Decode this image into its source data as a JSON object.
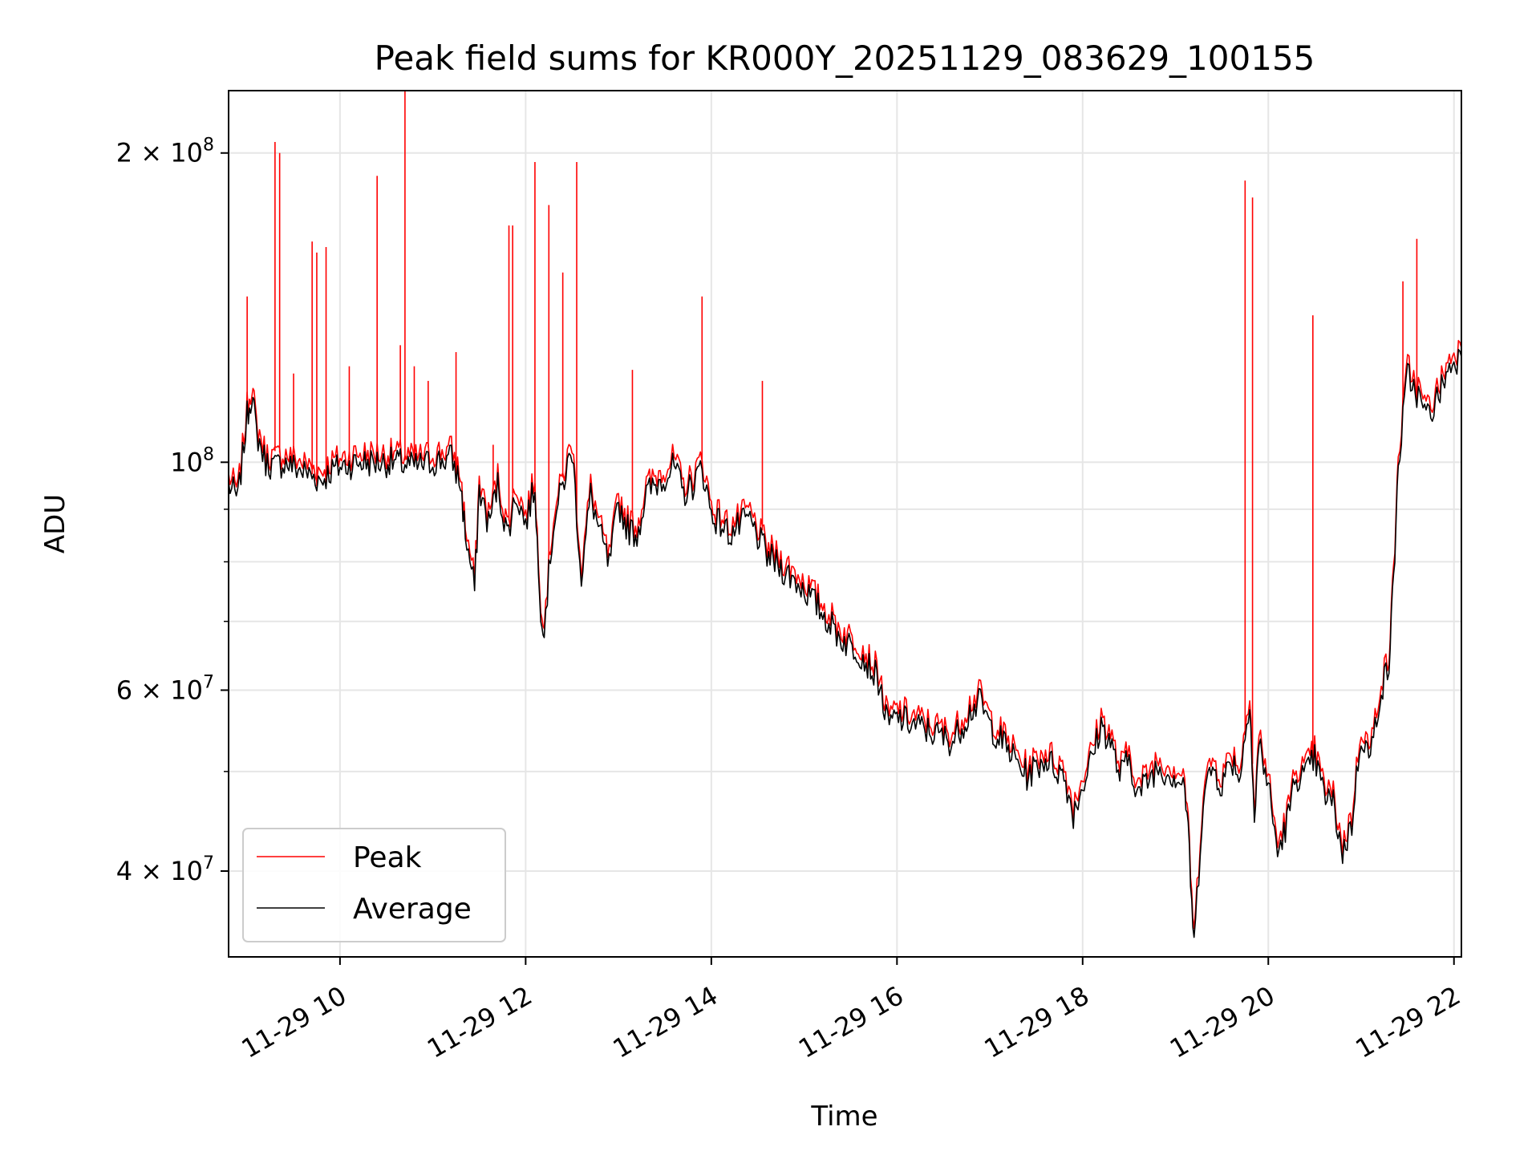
{
  "chart_data": {
    "type": "line",
    "title": "Peak field sums for KR000Y_20251129_083629_100155",
    "xlabel": "Time",
    "ylabel": "ADU",
    "yscale": "log",
    "grid": true,
    "legend_position": "lower-left",
    "x_unit": "hours of day (2025-11-29)",
    "xlim": [
      8.8,
      22.08
    ],
    "ylim": [
      33000000,
      230000000
    ],
    "x_ticks": [
      {
        "value": 10,
        "label": "11-29 10"
      },
      {
        "value": 12,
        "label": "11-29 12"
      },
      {
        "value": 14,
        "label": "11-29 14"
      },
      {
        "value": 16,
        "label": "11-29 16"
      },
      {
        "value": 18,
        "label": "11-29 18"
      },
      {
        "value": 20,
        "label": "11-29 20"
      },
      {
        "value": 22,
        "label": "11-29 22"
      }
    ],
    "y_ticks": [
      {
        "value": 40000000,
        "mant": "4",
        "exp": "7"
      },
      {
        "value": 60000000,
        "mant": "6",
        "exp": "7"
      },
      {
        "value": 100000000,
        "mant": "",
        "exp": "8"
      },
      {
        "value": 200000000,
        "mant": "2",
        "exp": "8"
      }
    ],
    "y_minor_ticks": [
      50000000,
      70000000,
      80000000,
      90000000
    ],
    "series": [
      {
        "name": "Peak",
        "color": "#ff0000",
        "x": [
          8.8,
          8.9,
          9.0,
          9.05,
          9.1,
          9.2,
          9.3,
          9.4,
          9.5,
          9.6,
          9.7,
          9.8,
          9.9,
          10.0,
          10.2,
          10.4,
          10.6,
          10.8,
          11.0,
          11.2,
          11.3,
          11.35,
          11.45,
          11.5,
          11.6,
          11.7,
          11.8,
          11.9,
          12.0,
          12.1,
          12.15,
          12.2,
          12.3,
          12.4,
          12.5,
          12.6,
          12.7,
          12.8,
          12.9,
          13.0,
          13.1,
          13.2,
          13.3,
          13.4,
          13.5,
          13.6,
          13.7,
          13.8,
          13.9,
          14.0,
          14.2,
          14.4,
          14.6,
          14.8,
          15.0,
          15.2,
          15.4,
          15.6,
          15.8,
          15.9,
          16.0,
          16.2,
          16.4,
          16.6,
          16.8,
          16.9,
          17.0,
          17.2,
          17.4,
          17.6,
          17.8,
          17.9,
          18.0,
          18.1,
          18.2,
          18.3,
          18.4,
          18.5,
          18.6,
          18.8,
          19.0,
          19.1,
          19.15,
          19.2,
          19.3,
          19.4,
          19.5,
          19.6,
          19.7,
          19.8,
          19.85,
          19.9,
          20.0,
          20.1,
          20.2,
          20.3,
          20.4,
          20.5,
          20.6,
          20.7,
          20.8,
          20.9,
          21.0,
          21.1,
          21.2,
          21.3,
          21.35,
          21.4,
          21.5,
          21.6,
          21.7,
          21.8,
          21.9,
          22.0,
          22.08
        ],
        "y": [
          96000000,
          93000000,
          112000000,
          118000000,
          108000000,
          101000000,
          100000000,
          101000000,
          100000000,
          99000000,
          98000000,
          97000000,
          99000000,
          100000000,
          101000000,
          101000000,
          101000000,
          100000000,
          101000000,
          102000000,
          96000000,
          86000000,
          76000000,
          95000000,
          88000000,
          96000000,
          86000000,
          94000000,
          88000000,
          96000000,
          74000000,
          70000000,
          88000000,
          96000000,
          104000000,
          78000000,
          94000000,
          86000000,
          80000000,
          92000000,
          87000000,
          86000000,
          94000000,
          96000000,
          98000000,
          100000000,
          94000000,
          96000000,
          100000000,
          90000000,
          86000000,
          89000000,
          82000000,
          79000000,
          76000000,
          72000000,
          68000000,
          66000000,
          62000000,
          56000000,
          57000000,
          56000000,
          55000000,
          54000000,
          58000000,
          59000000,
          56000000,
          53000000,
          50000000,
          52000000,
          50000000,
          46000000,
          49000000,
          52000000,
          56000000,
          54000000,
          50000000,
          52000000,
          48000000,
          51000000,
          50000000,
          49000000,
          42000000,
          34000000,
          48000000,
          51000000,
          49000000,
          52000000,
          50000000,
          60000000,
          45000000,
          54000000,
          49000000,
          42000000,
          45000000,
          50000000,
          50000000,
          52000000,
          48000000,
          47000000,
          42000000,
          45000000,
          55000000,
          52000000,
          60000000,
          64000000,
          78000000,
          100000000,
          123000000,
          118000000,
          112000000,
          115000000,
          122000000,
          127000000,
          128000000
        ],
        "spikes": [
          {
            "x": 9.0,
            "y": 145000000
          },
          {
            "x": 9.3,
            "y": 205000000
          },
          {
            "x": 9.35,
            "y": 200000000
          },
          {
            "x": 9.5,
            "y": 122000000
          },
          {
            "x": 9.7,
            "y": 164000000
          },
          {
            "x": 9.75,
            "y": 160000000
          },
          {
            "x": 9.85,
            "y": 162000000
          },
          {
            "x": 10.1,
            "y": 124000000
          },
          {
            "x": 10.4,
            "y": 190000000
          },
          {
            "x": 10.65,
            "y": 130000000
          },
          {
            "x": 10.7,
            "y": 232000000
          },
          {
            "x": 10.8,
            "y": 124000000
          },
          {
            "x": 10.95,
            "y": 120000000
          },
          {
            "x": 11.25,
            "y": 128000000
          },
          {
            "x": 11.65,
            "y": 104000000
          },
          {
            "x": 11.82,
            "y": 170000000
          },
          {
            "x": 11.86,
            "y": 170000000
          },
          {
            "x": 12.1,
            "y": 196000000
          },
          {
            "x": 12.25,
            "y": 178000000
          },
          {
            "x": 12.4,
            "y": 153000000
          },
          {
            "x": 12.55,
            "y": 196000000
          },
          {
            "x": 13.15,
            "y": 123000000
          },
          {
            "x": 13.9,
            "y": 145000000
          },
          {
            "x": 14.55,
            "y": 120000000
          },
          {
            "x": 19.75,
            "y": 188000000
          },
          {
            "x": 19.83,
            "y": 181000000
          },
          {
            "x": 20.48,
            "y": 139000000
          },
          {
            "x": 21.45,
            "y": 150000000
          },
          {
            "x": 21.6,
            "y": 165000000
          }
        ]
      },
      {
        "name": "Average",
        "color": "#000000",
        "note": "tracks Peak closely without the narrow spikes"
      }
    ]
  }
}
